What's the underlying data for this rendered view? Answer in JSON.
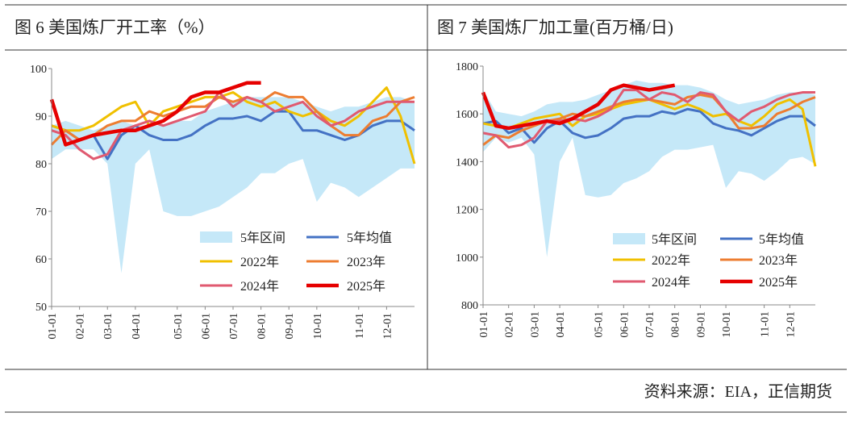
{
  "chart_data": [
    {
      "type": "line",
      "title": "图 6 美国炼厂开工率（%）",
      "categories": [
        "01-01",
        null,
        "02-01",
        null,
        "03-01",
        null,
        "04-01",
        null,
        null,
        "05-01",
        null,
        "06-01",
        null,
        "07-01",
        null,
        "08-01",
        null,
        "09-01",
        null,
        "10-01",
        null,
        null,
        "11-01",
        null,
        "12-01",
        null,
        null
      ],
      "ylim": [
        50,
        100
      ],
      "yticks": [
        50,
        60,
        70,
        80,
        90,
        100
      ],
      "series": [
        {
          "name": "5年区间",
          "color": "#c5e8f8",
          "low": [
            81,
            83,
            83,
            83,
            80,
            57,
            80,
            83,
            70,
            69,
            69,
            70,
            71,
            73,
            75,
            78,
            78,
            80,
            81,
            72,
            76,
            75,
            73,
            75,
            77,
            79,
            79
          ],
          "high": [
            88,
            89,
            88,
            87,
            88,
            89,
            88,
            88,
            88,
            89,
            89,
            91,
            92,
            93,
            94,
            94,
            94,
            94,
            93,
            92,
            91,
            92,
            92,
            93,
            94,
            94,
            93
          ]
        },
        {
          "name": "5年均值",
          "color": "#4472c4",
          "line_width": 3,
          "values": [
            88,
            87,
            85,
            86,
            81,
            86,
            88,
            86,
            85,
            85,
            86,
            88,
            89.5,
            89.5,
            90,
            89,
            91,
            91,
            87,
            87,
            86,
            85,
            86,
            88,
            89,
            89,
            87
          ]
        },
        {
          "name": "2022年",
          "color": "#f0c000",
          "line_width": 3,
          "values": [
            88,
            87,
            87,
            88,
            90,
            92,
            93,
            88,
            91,
            92,
            93,
            94,
            94,
            95,
            93,
            92,
            93,
            91,
            90,
            91,
            89,
            88,
            90,
            93,
            96,
            90,
            80
          ]
        },
        {
          "name": "2023年",
          "color": "#ed7d31",
          "line_width": 3,
          "values": [
            84,
            87,
            85,
            86,
            88,
            89,
            89,
            91,
            90,
            91,
            92,
            92,
            94,
            93,
            94,
            93,
            95,
            94,
            94,
            91,
            88,
            86,
            86,
            89,
            90,
            93,
            94
          ]
        },
        {
          "name": "2024年",
          "color": "#e05a70",
          "line_width": 3,
          "values": [
            87,
            86,
            83,
            81,
            82,
            87,
            88,
            89,
            88,
            89,
            90,
            91,
            95,
            92,
            94,
            93,
            91,
            92,
            93,
            90,
            88,
            89,
            91,
            92,
            93,
            93,
            93
          ]
        },
        {
          "name": "2025年",
          "color": "#e60000",
          "line_width": 4.5,
          "values": [
            93.5,
            84,
            85,
            86,
            86.5,
            87,
            87,
            88,
            89,
            91,
            94,
            95,
            95,
            96,
            97,
            97,
            null,
            null,
            null,
            null,
            null,
            null,
            null,
            null,
            null,
            null,
            null
          ]
        }
      ]
    },
    {
      "type": "line",
      "title": "图 7 美国炼厂加工量(百万桶/日)",
      "categories": [
        "01-01",
        null,
        "02-01",
        null,
        "03-01",
        null,
        "04-01",
        null,
        null,
        "05-01",
        null,
        "06-01",
        null,
        "07-01",
        null,
        "08-01",
        null,
        "09-01",
        null,
        "10-01",
        null,
        null,
        "11-01",
        null,
        "12-01",
        null,
        null
      ],
      "ylim": [
        800,
        1800
      ],
      "yticks": [
        800,
        1000,
        1200,
        1400,
        1600,
        1800
      ],
      "series": [
        {
          "name": "5年区间",
          "color": "#c5e8f8",
          "low": [
            1440,
            1500,
            1480,
            1500,
            1430,
            1000,
            1400,
            1500,
            1260,
            1250,
            1260,
            1310,
            1330,
            1360,
            1420,
            1450,
            1450,
            1460,
            1470,
            1290,
            1360,
            1350,
            1320,
            1360,
            1410,
            1420,
            1390
          ],
          "high": [
            1700,
            1610,
            1600,
            1590,
            1610,
            1640,
            1650,
            1650,
            1660,
            1680,
            1700,
            1720,
            1740,
            1730,
            1730,
            1720,
            1720,
            1710,
            1690,
            1660,
            1640,
            1650,
            1660,
            1680,
            1690,
            1690,
            1680
          ]
        },
        {
          "name": "5年均值",
          "color": "#4472c4",
          "line_width": 3,
          "values": [
            1560,
            1570,
            1520,
            1540,
            1480,
            1540,
            1570,
            1520,
            1500,
            1510,
            1540,
            1580,
            1590,
            1590,
            1610,
            1600,
            1620,
            1610,
            1560,
            1540,
            1530,
            1510,
            1540,
            1570,
            1590,
            1590,
            1550
          ]
        },
        {
          "name": "2022年",
          "color": "#f0c000",
          "line_width": 3,
          "values": [
            1560,
            1550,
            1540,
            1560,
            1580,
            1590,
            1600,
            1550,
            1590,
            1600,
            1620,
            1640,
            1650,
            1660,
            1640,
            1620,
            1640,
            1620,
            1590,
            1600,
            1570,
            1550,
            1590,
            1640,
            1660,
            1620,
            1380
          ]
        },
        {
          "name": "2023年",
          "color": "#ed7d31",
          "line_width": 3,
          "values": [
            1470,
            1510,
            1500,
            1530,
            1550,
            1570,
            1580,
            1600,
            1590,
            1610,
            1630,
            1650,
            1660,
            1660,
            1650,
            1640,
            1670,
            1680,
            1670,
            1610,
            1540,
            1540,
            1550,
            1600,
            1620,
            1650,
            1670
          ]
        },
        {
          "name": "2024年",
          "color": "#e05a70",
          "line_width": 3,
          "values": [
            1520,
            1510,
            1460,
            1470,
            1500,
            1570,
            1570,
            1580,
            1570,
            1590,
            1620,
            1700,
            1700,
            1660,
            1690,
            1680,
            1650,
            1690,
            1680,
            1610,
            1570,
            1610,
            1630,
            1660,
            1680,
            1690,
            1690
          ]
        },
        {
          "name": "2025年",
          "color": "#e60000",
          "line_width": 4.5,
          "values": [
            1690,
            1550,
            1540,
            1550,
            1560,
            1570,
            1560,
            1580,
            1610,
            1640,
            1700,
            1720,
            1710,
            1700,
            1710,
            1720,
            null,
            null,
            null,
            null,
            null,
            null,
            null,
            null,
            null,
            null,
            null
          ]
        }
      ]
    }
  ],
  "source": "资料来源：EIA，正信期货"
}
